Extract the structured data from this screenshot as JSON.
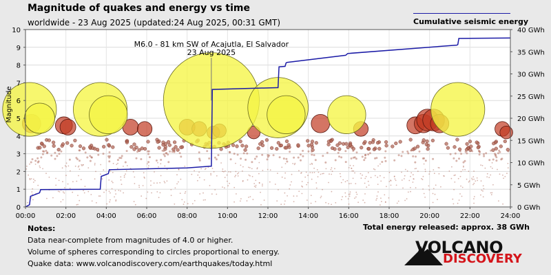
{
  "header": {
    "title": "Magnitude of quakes and energy vs time",
    "subtitle": "worldwide - 23 Aug 2025 (updated:24 Aug 2025, 00:31 GMT)",
    "legend_label": "Cumulative seismic energy"
  },
  "notes": {
    "heading": "Notes:",
    "line1": "Data near-complete from magnitudes of 4.0 or higher.",
    "line2": "Volume of spheres corresponding to circles proportional to energy.",
    "line3": "Quake data: www.volcanodiscovery.com/earthquakes/today.html"
  },
  "total_energy": "Total energy released: approx. 38 GWh",
  "logo": {
    "line1": "VOLCANO",
    "line2": "DISCOVERY",
    "icon": "volcano-icon"
  },
  "colors": {
    "energy_line": "#1a1aa6",
    "bubble_large": "#f5f545",
    "bubble_small": "#c23b22",
    "dot": "#b06a5a"
  },
  "chart_data": {
    "type": "scatter",
    "xlabel": "",
    "ylabel": "Magnitude",
    "y2label": "",
    "xlim": [
      0,
      24
    ],
    "ylim": [
      0,
      10
    ],
    "y2lim": [
      0,
      40
    ],
    "x_ticks": [
      "00:00",
      "02:00",
      "04:00",
      "06:00",
      "08:00",
      "10:00",
      "12:00",
      "14:00",
      "16:00",
      "18:00",
      "20:00",
      "22:00",
      "24:00"
    ],
    "y_ticks": [
      "0",
      "1",
      "2",
      "3",
      "4",
      "5",
      "6",
      "7",
      "8",
      "9",
      "10"
    ],
    "y2_ticks": [
      "0 GWh",
      "5 GWh",
      "10 GWh",
      "15 GWh",
      "20 GWh",
      "25 GWh",
      "30 GWh",
      "35 GWh",
      "40 GWh"
    ],
    "annotation": {
      "line1": "M6.0 - 81 km SW of Acajutla, El Salvador",
      "line2": "23 Aug 2025",
      "x": 9.2,
      "y": 6.0
    },
    "large_quakes": [
      {
        "t": 0.2,
        "mag": 5.5
      },
      {
        "t": 0.7,
        "mag": 5.0
      },
      {
        "t": 3.7,
        "mag": 5.5
      },
      {
        "t": 4.1,
        "mag": 5.2
      },
      {
        "t": 9.2,
        "mag": 6.0
      },
      {
        "t": 12.5,
        "mag": 5.6
      },
      {
        "t": 12.9,
        "mag": 5.2
      },
      {
        "t": 15.9,
        "mag": 5.2
      },
      {
        "t": 21.4,
        "mag": 5.5
      }
    ],
    "medium_quakes": [
      {
        "t": 0.3,
        "mag": 4.7
      },
      {
        "t": 1.9,
        "mag": 4.6
      },
      {
        "t": 2.1,
        "mag": 4.5
      },
      {
        "t": 5.2,
        "mag": 4.5
      },
      {
        "t": 5.9,
        "mag": 4.4
      },
      {
        "t": 8.0,
        "mag": 4.5
      },
      {
        "t": 8.6,
        "mag": 4.4
      },
      {
        "t": 9.3,
        "mag": 4.2
      },
      {
        "t": 9.6,
        "mag": 4.3
      },
      {
        "t": 11.3,
        "mag": 4.2
      },
      {
        "t": 14.6,
        "mag": 4.7
      },
      {
        "t": 16.6,
        "mag": 4.4
      },
      {
        "t": 19.3,
        "mag": 4.6
      },
      {
        "t": 19.7,
        "mag": 4.7
      },
      {
        "t": 19.9,
        "mag": 4.9
      },
      {
        "t": 20.2,
        "mag": 4.9
      },
      {
        "t": 20.5,
        "mag": 4.7
      },
      {
        "t": 23.6,
        "mag": 4.4
      },
      {
        "t": 23.8,
        "mag": 4.2
      }
    ],
    "energy": {
      "t": [
        0.0,
        0.2,
        0.25,
        0.7,
        0.75,
        3.7,
        3.75,
        4.1,
        4.15,
        8.0,
        9.15,
        9.2,
        9.25,
        12.45,
        12.5,
        12.55,
        12.85,
        12.9,
        12.95,
        15.85,
        15.9,
        15.95,
        21.35,
        21.4,
        21.45,
        24.0
      ],
      "gwh": [
        0.0,
        0.5,
        2.4,
        3.2,
        3.9,
        4.0,
        6.9,
        7.5,
        8.4,
        8.8,
        9.2,
        9.2,
        26.5,
        26.9,
        26.9,
        31.6,
        31.7,
        32.5,
        32.6,
        34.2,
        34.4,
        34.6,
        36.5,
        36.6,
        38.0,
        38.1
      ]
    }
  }
}
